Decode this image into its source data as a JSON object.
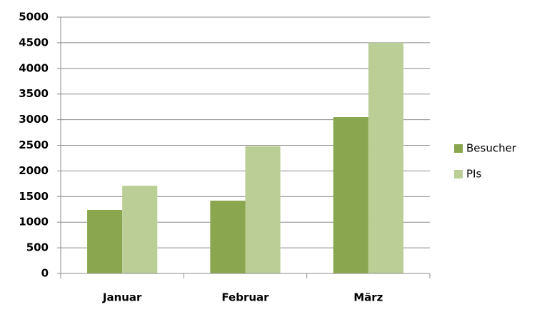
{
  "chart_data": {
    "type": "bar",
    "categories": [
      "Januar",
      "Februar",
      "März"
    ],
    "series": [
      {
        "name": "Besucher",
        "color": "#8aa64e",
        "values": [
          1240,
          1420,
          3050
        ]
      },
      {
        "name": "PIs",
        "color": "#bace96",
        "values": [
          1710,
          2480,
          4500
        ]
      }
    ],
    "ylim": [
      0,
      5000
    ],
    "yticks": [
      0,
      500,
      1000,
      1500,
      2000,
      2500,
      3000,
      3500,
      4000,
      4500,
      5000
    ],
    "grid": true,
    "legend": "right"
  }
}
